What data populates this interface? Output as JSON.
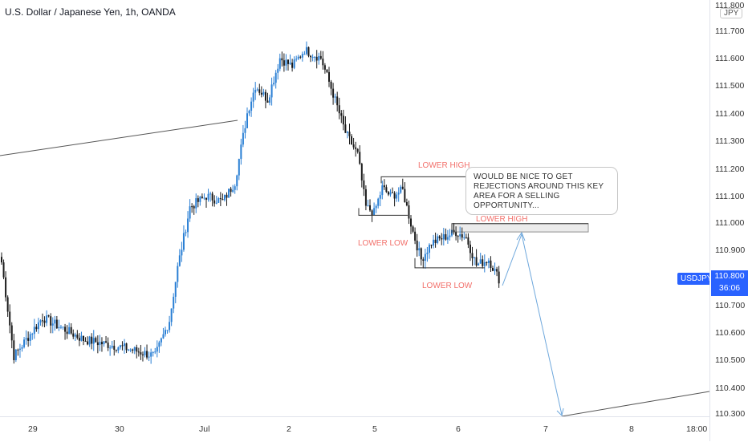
{
  "symbol_title": "U.S. Dollar / Japanese Yen, 1h, OANDA",
  "currency": "JPY",
  "symbol": "USDJPY",
  "last_price": "110.800",
  "countdown": "36:06",
  "price_ticks": [
    "111.800",
    "111.700",
    "111.600",
    "111.500",
    "111.400",
    "111.300",
    "111.200",
    "111.100",
    "111.000",
    "110.900",
    "110.700",
    "110.600",
    "110.500",
    "110.400",
    "110.300"
  ],
  "time_ticks": [
    "29",
    "30",
    "Jul",
    "2",
    "5",
    "6",
    "7",
    "8",
    "18:00"
  ],
  "annotations": {
    "lower_high_1": "LOWER HIGH",
    "lower_high_2": "LOWER HIGH",
    "lower_low_1": "LOWER LOW",
    "lower_low_2": "LOWER LOW",
    "callout_line_1": "WOULD BE NICE TO GET",
    "callout_line_2": "REJECTIONS AROUND THIS KEY",
    "callout_line_3": "AREA FOR A SELLING OPPORTUNITY..."
  },
  "colors": {
    "up": "#2a7fd4",
    "down": "#1a1a1a",
    "accent": "#2962ff",
    "annotation": "#f2706b",
    "trendline": "#555555",
    "projection": "#6fa8dc"
  },
  "chart_data": {
    "type": "candlestick",
    "title": "U.S. Dollar / Japanese Yen, 1h, OANDA",
    "ylim": [
      110.29,
      111.81
    ],
    "x_ticks": [
      "29",
      "30",
      "Jul",
      "2",
      "5",
      "6",
      "7",
      "8",
      "18:00"
    ],
    "y_ticks": [
      111.8,
      111.7,
      111.6,
      111.5,
      111.4,
      111.3,
      111.2,
      111.1,
      111.0,
      110.9,
      110.8,
      110.7,
      110.6,
      110.5,
      110.4,
      110.3
    ],
    "key_points": [
      {
        "x": 0,
        "price": 110.86
      },
      {
        "x": 6,
        "price": 110.52
      },
      {
        "x": 20,
        "price": 110.66
      },
      {
        "x": 40,
        "price": 110.58
      },
      {
        "x": 60,
        "price": 110.55
      },
      {
        "x": 75,
        "price": 110.52
      },
      {
        "x": 82,
        "price": 110.65
      },
      {
        "x": 86,
        "price": 110.84
      },
      {
        "x": 92,
        "price": 111.06
      },
      {
        "x": 100,
        "price": 111.1
      },
      {
        "x": 108,
        "price": 111.08
      },
      {
        "x": 114,
        "price": 111.15
      },
      {
        "x": 120,
        "price": 111.4
      },
      {
        "x": 124,
        "price": 111.5
      },
      {
        "x": 130,
        "price": 111.45
      },
      {
        "x": 136,
        "price": 111.6
      },
      {
        "x": 142,
        "price": 111.57
      },
      {
        "x": 148,
        "price": 111.63
      },
      {
        "x": 156,
        "price": 111.6
      },
      {
        "x": 162,
        "price": 111.47
      },
      {
        "x": 168,
        "price": 111.33
      },
      {
        "x": 174,
        "price": 111.25
      },
      {
        "x": 178,
        "price": 111.06
      },
      {
        "x": 182,
        "price": 111.04
      },
      {
        "x": 186,
        "price": 111.13
      },
      {
        "x": 190,
        "price": 111.1
      },
      {
        "x": 196,
        "price": 111.12
      },
      {
        "x": 201,
        "price": 110.97
      },
      {
        "x": 205,
        "price": 110.87
      },
      {
        "x": 210,
        "price": 110.93
      },
      {
        "x": 216,
        "price": 110.95
      },
      {
        "x": 222,
        "price": 110.97
      },
      {
        "x": 227,
        "price": 110.95
      },
      {
        "x": 232,
        "price": 110.85
      },
      {
        "x": 238,
        "price": 110.87
      },
      {
        "x": 243,
        "price": 110.8
      }
    ],
    "annotation_levels": {
      "lower_high_1": 111.17,
      "lower_low_1": 111.01,
      "lower_high_2": 111.0,
      "lower_low_2": 110.84,
      "key_zone": [
        110.97,
        111.0
      ]
    }
  }
}
